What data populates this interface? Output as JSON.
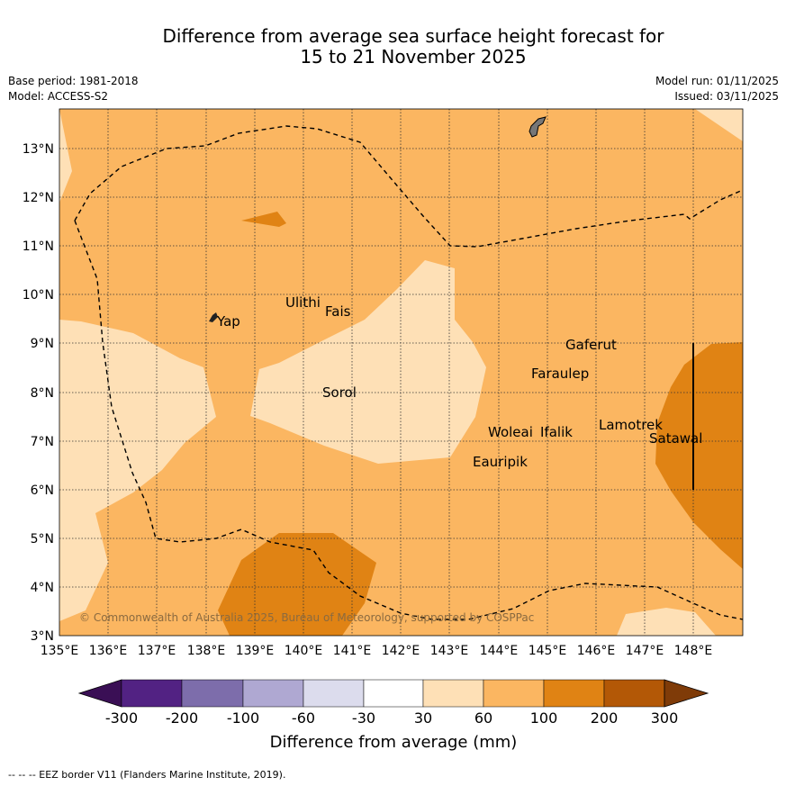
{
  "title_line1": "Difference from average sea surface height forecast for",
  "title_line2": "15 to 21 November 2025",
  "base_period": "Base period: 1981-2018",
  "model": "Model: ACCESS-S2",
  "model_run": "Model run: 01/11/2025",
  "issued": "Issued: 03/11/2025",
  "lat_ticks": [
    "3°N",
    "4°N",
    "5°N",
    "6°N",
    "7°N",
    "8°N",
    "9°N",
    "10°N",
    "11°N",
    "12°N",
    "13°N"
  ],
  "lon_ticks": [
    "135°E",
    "136°E",
    "137°E",
    "138°E",
    "139°E",
    "140°E",
    "141°E",
    "142°E",
    "143°E",
    "144°E",
    "145°E",
    "146°E",
    "147°E",
    "148°E"
  ],
  "places": [
    "Ulithi",
    "Fais",
    "Yap",
    "Gaferut",
    "Faraulep",
    "Sorol",
    "Woleai",
    "Ifalik",
    "Lamotrek",
    "Satawal",
    "Eauripik"
  ],
  "copyright": "© Commonwealth of Australia 2025, Bureau of Meteorology, supported by COSPPac",
  "colorbar": {
    "tick_labels": [
      "-300",
      "-200",
      "-100",
      "-60",
      "-30",
      "30",
      "60",
      "100",
      "200",
      "300"
    ],
    "colors": [
      "#3a0f55",
      "#522283",
      "#7d6dab",
      "#afa8d2",
      "#dcdced",
      "#ffffff",
      "#fee0b6",
      "#fbb661",
      "#e08314",
      "#b35806",
      "#7f3b08"
    ],
    "label": "Difference from average (mm)"
  },
  "footer": "--  --  -- EEZ border V11 (Flanders Marine Institute, 2019)."
}
